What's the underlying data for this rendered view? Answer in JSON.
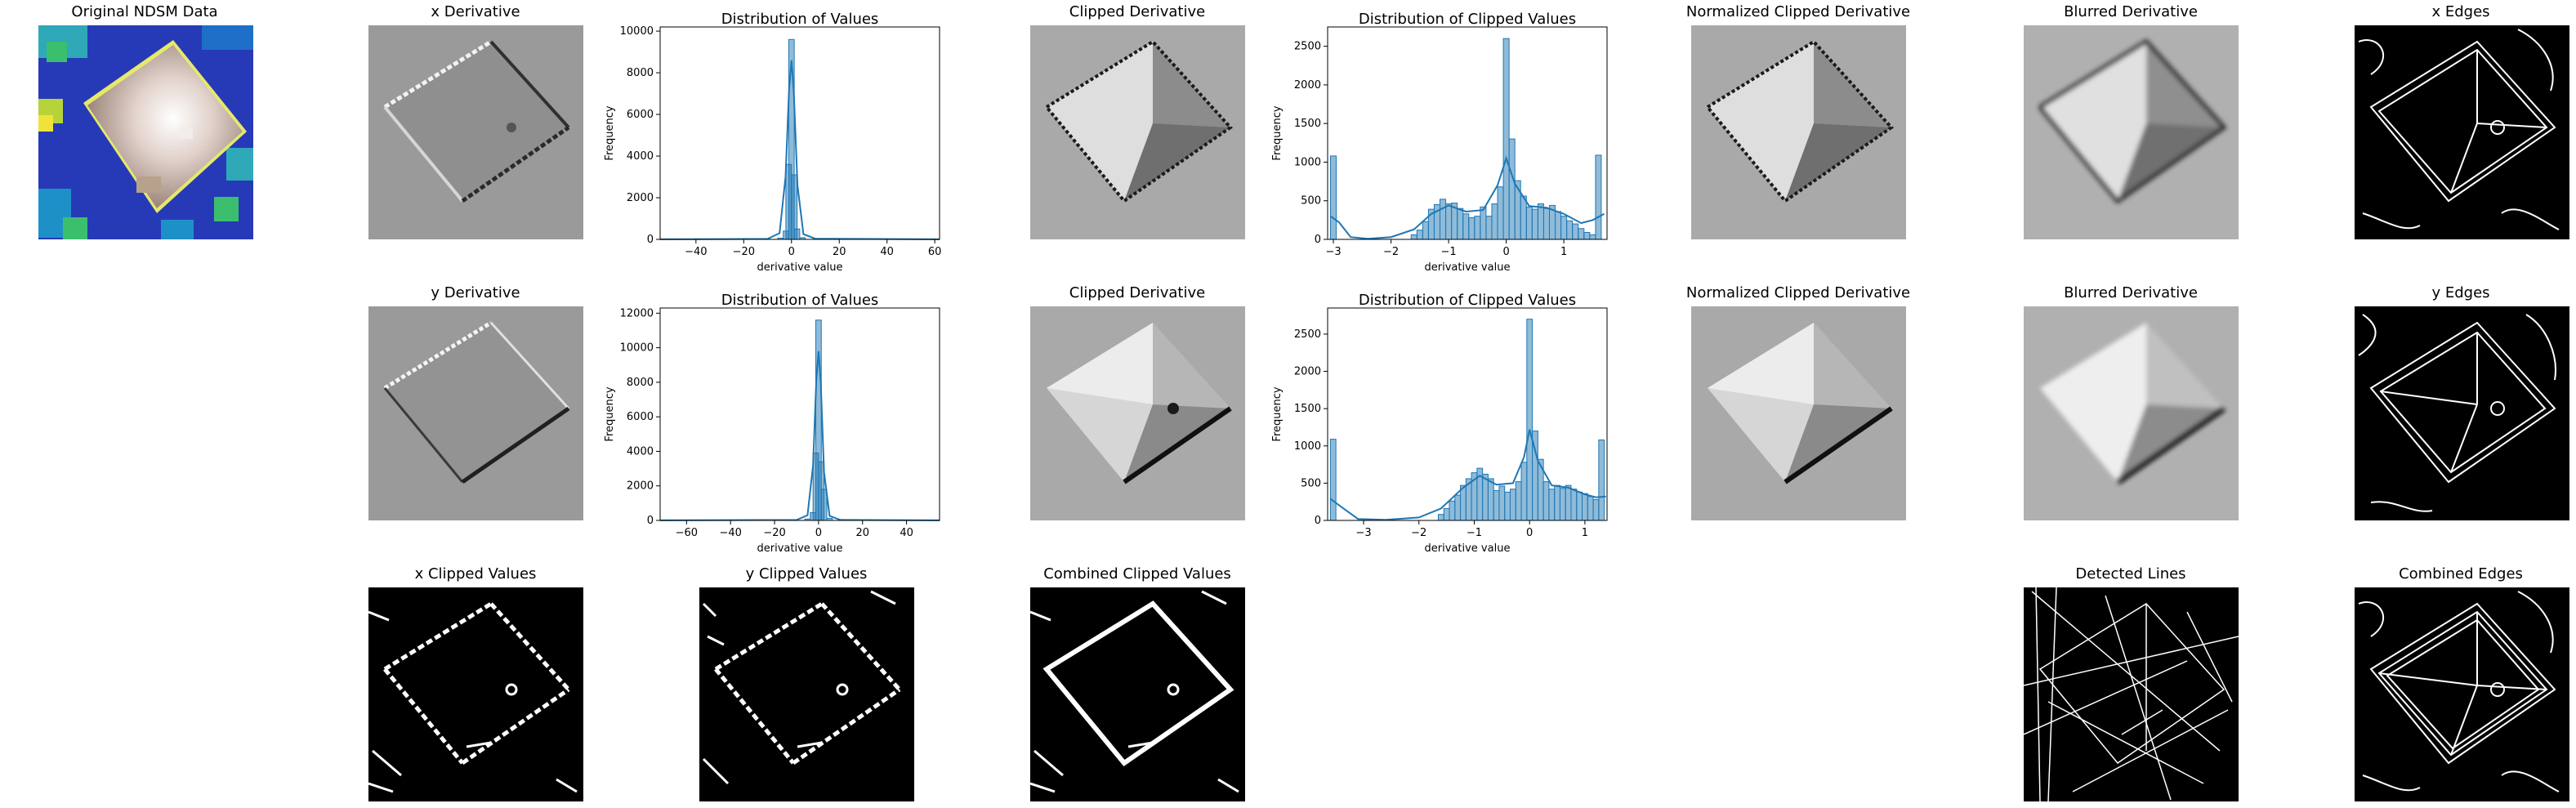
{
  "panels": {
    "original": "Original NDSM Data",
    "x_derivative": "x Derivative",
    "y_derivative": "y Derivative",
    "x_clipped_derivative": "Clipped Derivative",
    "y_clipped_derivative": "Clipped Derivative",
    "x_normalized": "Normalized Clipped Derivative",
    "y_normalized": "Normalized Clipped Derivative",
    "x_blurred": "Blurred Derivative",
    "y_blurred": "Blurred Derivative",
    "x_edges": "x Edges",
    "y_edges": "y Edges",
    "x_clipped_values": "x Clipped Values",
    "y_clipped_values": "y Clipped Values",
    "combined_clipped_values": "Combined Clipped Values",
    "detected_lines": "Detected Lines",
    "combined_edges": "Combined Edges"
  },
  "chart_data": [
    {
      "type": "bar",
      "title": "Distribution of Values",
      "xlabel": "derivative value",
      "ylabel": "Frequency",
      "xlim": [
        -55,
        62
      ],
      "ylim": [
        0,
        10200
      ],
      "xticks": [
        -40,
        -20,
        0,
        20,
        40,
        60
      ],
      "yticks": [
        0,
        2000,
        4000,
        6000,
        8000,
        10000
      ],
      "bin_width": 2.3,
      "bars": [
        {
          "x": -4.6,
          "y": 60
        },
        {
          "x": -2.3,
          "y": 400
        },
        {
          "x": -1.2,
          "y": 3600
        },
        {
          "x": 0.0,
          "y": 9600
        },
        {
          "x": 1.2,
          "y": 3100
        },
        {
          "x": 2.3,
          "y": 500
        },
        {
          "x": 4.6,
          "y": 80
        }
      ],
      "kde": [
        [
          -55,
          5
        ],
        [
          -10,
          25
        ],
        [
          -5,
          300
        ],
        [
          -2.5,
          3000
        ],
        [
          -1,
          7200
        ],
        [
          0,
          8600
        ],
        [
          1,
          7000
        ],
        [
          2.5,
          2600
        ],
        [
          5,
          250
        ],
        [
          10,
          30
        ],
        [
          62,
          5
        ]
      ]
    },
    {
      "type": "bar",
      "title": "Distribution of Clipped Values",
      "xlabel": "derivative value",
      "ylabel": "Frequency",
      "xlim": [
        -3.1,
        1.75
      ],
      "ylim": [
        0,
        2750
      ],
      "xticks": [
        -3,
        -2,
        -1,
        0,
        1
      ],
      "yticks": [
        0,
        500,
        1000,
        1500,
        2000,
        2500
      ],
      "bin_width": 0.1,
      "bars": [
        {
          "x": -3.0,
          "y": 1080
        },
        {
          "x": -1.6,
          "y": 60
        },
        {
          "x": -1.5,
          "y": 120
        },
        {
          "x": -1.4,
          "y": 230
        },
        {
          "x": -1.3,
          "y": 390
        },
        {
          "x": -1.2,
          "y": 450
        },
        {
          "x": -1.1,
          "y": 520
        },
        {
          "x": -1.0,
          "y": 460
        },
        {
          "x": -0.9,
          "y": 470
        },
        {
          "x": -0.8,
          "y": 400
        },
        {
          "x": -0.7,
          "y": 330
        },
        {
          "x": -0.6,
          "y": 280
        },
        {
          "x": -0.5,
          "y": 300
        },
        {
          "x": -0.4,
          "y": 420
        },
        {
          "x": -0.3,
          "y": 300
        },
        {
          "x": -0.2,
          "y": 460
        },
        {
          "x": -0.1,
          "y": 680
        },
        {
          "x": 0.0,
          "y": 2600
        },
        {
          "x": 0.1,
          "y": 1300
        },
        {
          "x": 0.2,
          "y": 760
        },
        {
          "x": 0.3,
          "y": 560
        },
        {
          "x": 0.4,
          "y": 420
        },
        {
          "x": 0.5,
          "y": 390
        },
        {
          "x": 0.6,
          "y": 460
        },
        {
          "x": 0.7,
          "y": 400
        },
        {
          "x": 0.8,
          "y": 440
        },
        {
          "x": 0.9,
          "y": 360
        },
        {
          "x": 1.0,
          "y": 300
        },
        {
          "x": 1.1,
          "y": 240
        },
        {
          "x": 1.2,
          "y": 200
        },
        {
          "x": 1.3,
          "y": 140
        },
        {
          "x": 1.4,
          "y": 90
        },
        {
          "x": 1.5,
          "y": 60
        },
        {
          "x": 1.6,
          "y": 1090
        }
      ],
      "kde": [
        [
          -3.05,
          300
        ],
        [
          -2.9,
          220
        ],
        [
          -2.7,
          30
        ],
        [
          -2.4,
          8
        ],
        [
          -2.0,
          30
        ],
        [
          -1.6,
          130
        ],
        [
          -1.3,
          330
        ],
        [
          -1.0,
          440
        ],
        [
          -0.7,
          360
        ],
        [
          -0.4,
          380
        ],
        [
          -0.15,
          700
        ],
        [
          0.0,
          1050
        ],
        [
          0.15,
          720
        ],
        [
          0.4,
          430
        ],
        [
          0.7,
          410
        ],
        [
          1.0,
          330
        ],
        [
          1.3,
          210
        ],
        [
          1.5,
          250
        ],
        [
          1.7,
          330
        ]
      ]
    },
    {
      "type": "bar",
      "title": "Distribution of Values",
      "xlabel": "derivative value",
      "ylabel": "Frequency",
      "xlim": [
        -72,
        55
      ],
      "ylim": [
        0,
        12300
      ],
      "xticks": [
        -60,
        -40,
        -20,
        0,
        20,
        40
      ],
      "yticks": [
        0,
        2000,
        4000,
        6000,
        8000,
        10000,
        12000
      ],
      "bin_width": 2.5,
      "bars": [
        {
          "x": -5,
          "y": 80
        },
        {
          "x": -2.5,
          "y": 450
        },
        {
          "x": -1.25,
          "y": 3900
        },
        {
          "x": 0.0,
          "y": 11600
        },
        {
          "x": 1.25,
          "y": 3400
        },
        {
          "x": 2.5,
          "y": 1800
        },
        {
          "x": 5,
          "y": 120
        }
      ],
      "kde": [
        [
          -72,
          5
        ],
        [
          -10,
          30
        ],
        [
          -5,
          300
        ],
        [
          -2.5,
          3200
        ],
        [
          -1,
          8200
        ],
        [
          0,
          9800
        ],
        [
          1,
          8000
        ],
        [
          2.5,
          2800
        ],
        [
          5,
          260
        ],
        [
          10,
          30
        ],
        [
          55,
          5
        ]
      ]
    },
    {
      "type": "bar",
      "title": "Distribution of Clipped Values",
      "xlabel": "derivative value",
      "ylabel": "Frequency",
      "xlim": [
        -3.65,
        1.4
      ],
      "ylim": [
        0,
        2850
      ],
      "xticks": [
        -3,
        -2,
        -1,
        0,
        1
      ],
      "yticks": [
        0,
        500,
        1000,
        1500,
        2000,
        2500
      ],
      "bin_width": 0.1,
      "bars": [
        {
          "x": -3.55,
          "y": 1090
        },
        {
          "x": -1.6,
          "y": 80
        },
        {
          "x": -1.5,
          "y": 160
        },
        {
          "x": -1.4,
          "y": 260
        },
        {
          "x": -1.3,
          "y": 340
        },
        {
          "x": -1.2,
          "y": 470
        },
        {
          "x": -1.1,
          "y": 560
        },
        {
          "x": -1.0,
          "y": 640
        },
        {
          "x": -0.9,
          "y": 700
        },
        {
          "x": -0.8,
          "y": 620
        },
        {
          "x": -0.7,
          "y": 560
        },
        {
          "x": -0.6,
          "y": 400
        },
        {
          "x": -0.5,
          "y": 460
        },
        {
          "x": -0.4,
          "y": 380
        },
        {
          "x": -0.3,
          "y": 420
        },
        {
          "x": -0.2,
          "y": 520
        },
        {
          "x": -0.1,
          "y": 780
        },
        {
          "x": 0.0,
          "y": 2700
        },
        {
          "x": 0.1,
          "y": 1200
        },
        {
          "x": 0.2,
          "y": 820
        },
        {
          "x": 0.3,
          "y": 520
        },
        {
          "x": 0.4,
          "y": 420
        },
        {
          "x": 0.5,
          "y": 470
        },
        {
          "x": 0.6,
          "y": 430
        },
        {
          "x": 0.7,
          "y": 470
        },
        {
          "x": 0.8,
          "y": 420
        },
        {
          "x": 0.9,
          "y": 380
        },
        {
          "x": 1.0,
          "y": 360
        },
        {
          "x": 1.1,
          "y": 320
        },
        {
          "x": 1.2,
          "y": 280
        },
        {
          "x": 1.3,
          "y": 1080
        }
      ],
      "kde": [
        [
          -3.6,
          290
        ],
        [
          -3.4,
          180
        ],
        [
          -3.1,
          20
        ],
        [
          -2.6,
          8
        ],
        [
          -2.0,
          40
        ],
        [
          -1.6,
          160
        ],
        [
          -1.2,
          440
        ],
        [
          -0.9,
          600
        ],
        [
          -0.6,
          480
        ],
        [
          -0.3,
          500
        ],
        [
          -0.1,
          850
        ],
        [
          0.0,
          1220
        ],
        [
          0.15,
          800
        ],
        [
          0.4,
          470
        ],
        [
          0.7,
          440
        ],
        [
          1.0,
          350
        ],
        [
          1.2,
          310
        ],
        [
          1.38,
          320
        ]
      ]
    }
  ]
}
